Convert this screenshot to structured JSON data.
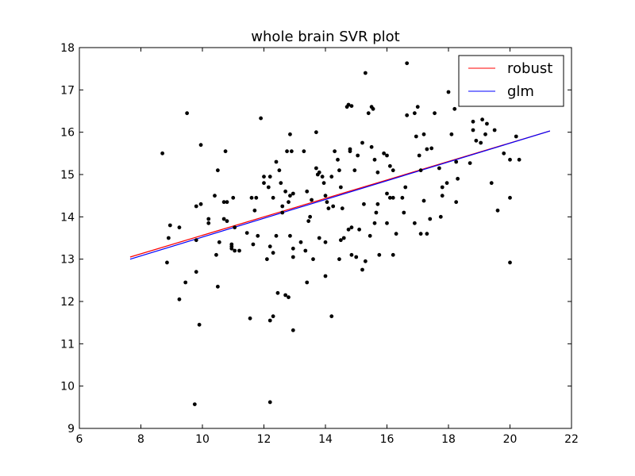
{
  "chart_data": {
    "type": "scatter",
    "title": "whole brain SVR plot",
    "xlabel": "",
    "ylabel": "",
    "xlim": [
      6,
      22
    ],
    "ylim": [
      9,
      18
    ],
    "grid": false,
    "legend_position": "top-right",
    "x_ticks": [
      "6",
      "8",
      "10",
      "12",
      "14",
      "16",
      "18",
      "20",
      "22"
    ],
    "y_ticks": [
      "9",
      "10",
      "11",
      "12",
      "13",
      "14",
      "15",
      "16",
      "17",
      "18"
    ],
    "points_color": "#000000",
    "points": [
      [
        8.7,
        15.5
      ],
      [
        9.5,
        16.45
      ],
      [
        9.95,
        15.7
      ],
      [
        10.5,
        15.1
      ],
      [
        10.75,
        15.55
      ],
      [
        8.95,
        13.8
      ],
      [
        9.25,
        13.75
      ],
      [
        8.9,
        13.5
      ],
      [
        8.85,
        12.92
      ],
      [
        9.8,
        13.45
      ],
      [
        9.8,
        14.25
      ],
      [
        9.95,
        14.3
      ],
      [
        10.2,
        13.95
      ],
      [
        10.2,
        13.85
      ],
      [
        10.4,
        14.5
      ],
      [
        10.7,
        14.35
      ],
      [
        10.8,
        14.35
      ],
      [
        11.0,
        14.45
      ],
      [
        10.7,
        13.95
      ],
      [
        10.8,
        13.9
      ],
      [
        11.05,
        13.75
      ],
      [
        10.55,
        13.4
      ],
      [
        10.95,
        13.35
      ],
      [
        10.95,
        13.25
      ],
      [
        11.05,
        13.2
      ],
      [
        11.2,
        13.2
      ],
      [
        10.45,
        13.1
      ],
      [
        10.95,
        13.3
      ],
      [
        9.45,
        12.45
      ],
      [
        9.25,
        12.05
      ],
      [
        9.8,
        12.7
      ],
      [
        10.5,
        12.35
      ],
      [
        9.9,
        11.45
      ],
      [
        9.75,
        9.57
      ],
      [
        11.6,
        14.45
      ],
      [
        11.7,
        14.15
      ],
      [
        11.75,
        14.45
      ],
      [
        11.8,
        13.55
      ],
      [
        11.9,
        16.33
      ],
      [
        12.0,
        14.95
      ],
      [
        12.0,
        14.8
      ],
      [
        12.15,
        14.7
      ],
      [
        12.2,
        14.95
      ],
      [
        12.3,
        14.45
      ],
      [
        12.4,
        15.3
      ],
      [
        12.5,
        15.1
      ],
      [
        12.55,
        14.8
      ],
      [
        12.6,
        14.25
      ],
      [
        12.7,
        14.6
      ],
      [
        12.8,
        14.35
      ],
      [
        12.85,
        14.5
      ],
      [
        12.95,
        14.55
      ],
      [
        12.6,
        14.1
      ],
      [
        12.75,
        15.55
      ],
      [
        12.85,
        15.95
      ],
      [
        12.9,
        15.55
      ],
      [
        13.3,
        15.55
      ],
      [
        13.4,
        14.6
      ],
      [
        13.5,
        14.0
      ],
      [
        13.45,
        13.9
      ],
      [
        13.55,
        14.4
      ],
      [
        13.7,
        16.0
      ],
      [
        13.7,
        15.15
      ],
      [
        13.75,
        15.0
      ],
      [
        13.8,
        15.05
      ],
      [
        13.9,
        14.95
      ],
      [
        13.95,
        14.8
      ],
      [
        14.0,
        14.5
      ],
      [
        14.05,
        14.35
      ],
      [
        14.1,
        14.2
      ],
      [
        14.25,
        14.25
      ],
      [
        14.2,
        14.95
      ],
      [
        14.3,
        15.55
      ],
      [
        14.4,
        15.35
      ],
      [
        14.45,
        15.1
      ],
      [
        14.5,
        14.7
      ],
      [
        14.55,
        14.2
      ],
      [
        14.7,
        16.6
      ],
      [
        14.75,
        16.65
      ],
      [
        14.85,
        16.62
      ],
      [
        14.8,
        15.6
      ],
      [
        14.8,
        15.55
      ],
      [
        14.95,
        15.1
      ],
      [
        15.05,
        15.45
      ],
      [
        15.2,
        15.75
      ],
      [
        15.4,
        16.45
      ],
      [
        15.5,
        16.6
      ],
      [
        15.55,
        16.55
      ],
      [
        15.5,
        15.65
      ],
      [
        15.6,
        15.35
      ],
      [
        15.7,
        15.05
      ],
      [
        15.7,
        14.3
      ],
      [
        15.65,
        14.1
      ],
      [
        15.6,
        13.85
      ],
      [
        15.45,
        13.55
      ],
      [
        15.3,
        17.4
      ],
      [
        15.9,
        15.5
      ],
      [
        16.0,
        15.45
      ],
      [
        16.1,
        15.2
      ],
      [
        16.2,
        15.1
      ],
      [
        16.0,
        14.55
      ],
      [
        16.1,
        14.45
      ],
      [
        16.2,
        14.45
      ],
      [
        16.0,
        13.85
      ],
      [
        16.2,
        13.1
      ],
      [
        16.3,
        13.6
      ],
      [
        15.2,
        12.75
      ],
      [
        15.3,
        12.95
      ],
      [
        15.75,
        13.1
      ],
      [
        16.5,
        14.45
      ],
      [
        16.6,
        14.7
      ],
      [
        16.55,
        14.1
      ],
      [
        16.65,
        16.4
      ],
      [
        16.65,
        17.63
      ],
      [
        16.9,
        16.45
      ],
      [
        17.0,
        16.6
      ],
      [
        16.95,
        15.9
      ],
      [
        17.05,
        15.45
      ],
      [
        17.1,
        15.1
      ],
      [
        17.2,
        15.95
      ],
      [
        17.3,
        15.6
      ],
      [
        17.45,
        15.62
      ],
      [
        17.55,
        16.45
      ],
      [
        17.7,
        15.15
      ],
      [
        17.8,
        14.7
      ],
      [
        17.8,
        14.5
      ],
      [
        17.95,
        14.8
      ],
      [
        17.75,
        14.0
      ],
      [
        18.0,
        16.95
      ],
      [
        18.1,
        15.95
      ],
      [
        18.2,
        16.55
      ],
      [
        18.25,
        15.3
      ],
      [
        18.25,
        14.35
      ],
      [
        18.3,
        14.9
      ],
      [
        18.7,
        15.27
      ],
      [
        18.8,
        16.25
      ],
      [
        18.8,
        16.05
      ],
      [
        18.9,
        15.8
      ],
      [
        19.05,
        15.75
      ],
      [
        19.1,
        16.3
      ],
      [
        19.2,
        15.95
      ],
      [
        19.25,
        16.2
      ],
      [
        19.4,
        14.8
      ],
      [
        19.5,
        16.05
      ],
      [
        19.6,
        14.15
      ],
      [
        19.8,
        15.5
      ],
      [
        20.0,
        15.35
      ],
      [
        20.2,
        15.9
      ],
      [
        20.3,
        15.35
      ],
      [
        20.0,
        14.45
      ],
      [
        20.0,
        12.92
      ],
      [
        16.9,
        13.85
      ],
      [
        17.1,
        13.6
      ],
      [
        17.3,
        13.6
      ],
      [
        17.4,
        13.95
      ],
      [
        17.2,
        14.38
      ],
      [
        11.45,
        13.62
      ],
      [
        11.65,
        13.35
      ],
      [
        12.1,
        13.0
      ],
      [
        12.2,
        13.3
      ],
      [
        12.3,
        13.15
      ],
      [
        12.4,
        13.55
      ],
      [
        12.85,
        13.55
      ],
      [
        12.95,
        13.25
      ],
      [
        12.95,
        13.05
      ],
      [
        13.2,
        13.4
      ],
      [
        13.35,
        13.2
      ],
      [
        13.6,
        13.0
      ],
      [
        13.8,
        13.5
      ],
      [
        14.0,
        13.4
      ],
      [
        14.0,
        12.6
      ],
      [
        14.45,
        13.0
      ],
      [
        14.5,
        13.45
      ],
      [
        14.6,
        13.5
      ],
      [
        14.75,
        13.7
      ],
      [
        14.85,
        13.75
      ],
      [
        14.85,
        13.1
      ],
      [
        15.0,
        13.05
      ],
      [
        15.1,
        13.7
      ],
      [
        15.25,
        14.3
      ],
      [
        12.3,
        11.65
      ],
      [
        12.2,
        11.55
      ],
      [
        12.45,
        12.2
      ],
      [
        12.7,
        12.15
      ],
      [
        12.8,
        12.1
      ],
      [
        13.4,
        12.45
      ],
      [
        11.55,
        11.6
      ],
      [
        12.95,
        11.32
      ],
      [
        14.2,
        11.65
      ],
      [
        12.2,
        9.62
      ]
    ],
    "series": [
      {
        "name": "robust",
        "color": "#ff0000",
        "x": [
          7.65,
          21.3
        ],
        "y": [
          13.05,
          16.03
        ]
      },
      {
        "name": "glm",
        "color": "#0000ff",
        "x": [
          7.65,
          21.3
        ],
        "y": [
          13.0,
          16.03
        ]
      }
    ]
  }
}
